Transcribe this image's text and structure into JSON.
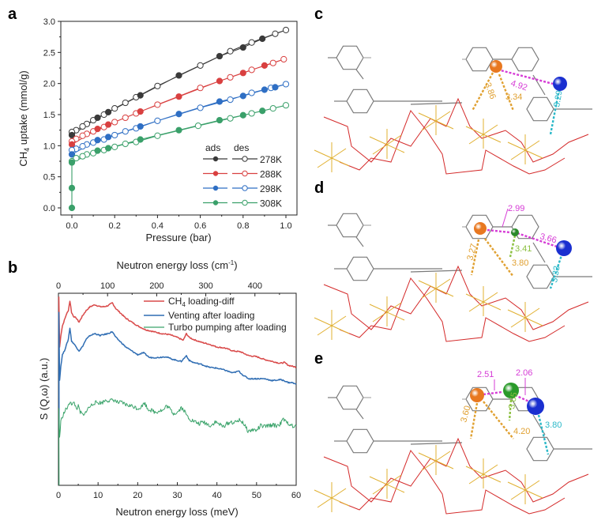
{
  "panels": {
    "a": "a",
    "b": "b",
    "c": "c",
    "d": "d",
    "e": "e"
  },
  "chart_data": [
    {
      "type": "scatter",
      "panel": "a",
      "xlabel": "Pressure (bar)",
      "ylabel_main": "CH",
      "ylabel_sub": "4",
      "ylabel_rest": " uptake (mmol/g)",
      "xlim": [
        0,
        1.0
      ],
      "ylim": [
        0,
        3.0
      ],
      "xticks": [
        "0.0",
        "0.2",
        "0.4",
        "0.6",
        "0.8",
        "1.0"
      ],
      "xtick_values": [
        0,
        0.2,
        0.4,
        0.6,
        0.8,
        1.0
      ],
      "yticks": [
        "0.0",
        "0.5",
        "1.0",
        "1.5",
        "2.0",
        "2.5",
        "3.0"
      ],
      "ytick_values": [
        0,
        0.5,
        1.0,
        1.5,
        2.0,
        2.5,
        3.0
      ],
      "legend_header": [
        "ads",
        "des"
      ],
      "legend_position": "bottom-right",
      "series": [
        {
          "name": "278K",
          "color": "#3a3a3a",
          "ads": [
            [
              0,
              1.17
            ],
            [
              0.12,
              1.45
            ],
            [
              0.17,
              1.54
            ],
            [
              0.32,
              1.81
            ],
            [
              0.5,
              2.13
            ],
            [
              0.69,
              2.44
            ],
            [
              0.8,
              2.58
            ],
            [
              0.89,
              2.72
            ]
          ],
          "des": [
            [
              1.0,
              2.86
            ],
            [
              0.95,
              2.8
            ],
            [
              0.84,
              2.66
            ],
            [
              0.74,
              2.52
            ],
            [
              0.6,
              2.29
            ],
            [
              0.4,
              1.96
            ],
            [
              0.3,
              1.78
            ],
            [
              0.25,
              1.69
            ],
            [
              0.2,
              1.6
            ],
            [
              0.15,
              1.5
            ],
            [
              0.1,
              1.41
            ],
            [
              0.07,
              1.35
            ],
            [
              0.05,
              1.31
            ],
            [
              0.02,
              1.25
            ],
            [
              0,
              1.22
            ]
          ]
        },
        {
          "name": "288K",
          "color": "#d94040",
          "ads": [
            [
              0,
              1.02
            ],
            [
              0.12,
              1.27
            ],
            [
              0.17,
              1.34
            ],
            [
              0.32,
              1.55
            ],
            [
              0.5,
              1.79
            ],
            [
              0.69,
              2.04
            ],
            [
              0.8,
              2.17
            ],
            [
              0.9,
              2.29
            ]
          ],
          "des": [
            [
              0.99,
              2.39
            ],
            [
              0.94,
              2.33
            ],
            [
              0.84,
              2.22
            ],
            [
              0.74,
              2.1
            ],
            [
              0.6,
              1.93
            ],
            [
              0.4,
              1.66
            ],
            [
              0.3,
              1.52
            ],
            [
              0.25,
              1.45
            ],
            [
              0.2,
              1.38
            ],
            [
              0.15,
              1.3
            ],
            [
              0.1,
              1.23
            ],
            [
              0.07,
              1.19
            ],
            [
              0.05,
              1.16
            ],
            [
              0.02,
              1.11
            ],
            [
              0,
              1.07
            ]
          ]
        },
        {
          "name": "298K",
          "color": "#2f6fc4",
          "ads": [
            [
              0,
              0.86
            ],
            [
              0.12,
              1.09
            ],
            [
              0.17,
              1.14
            ],
            [
              0.32,
              1.31
            ],
            [
              0.5,
              1.51
            ],
            [
              0.69,
              1.71
            ],
            [
              0.8,
              1.8
            ],
            [
              0.9,
              1.9
            ],
            [
              0.95,
              1.94
            ]
          ],
          "des": [
            [
              1.0,
              1.99
            ],
            [
              0.93,
              1.93
            ],
            [
              0.84,
              1.85
            ],
            [
              0.74,
              1.74
            ],
            [
              0.6,
              1.61
            ],
            [
              0.4,
              1.4
            ],
            [
              0.3,
              1.28
            ],
            [
              0.25,
              1.23
            ],
            [
              0.2,
              1.17
            ],
            [
              0.15,
              1.1
            ],
            [
              0.1,
              1.05
            ],
            [
              0.07,
              1.02
            ],
            [
              0.05,
              0.99
            ],
            [
              0.02,
              0.95
            ],
            [
              0,
              0.93
            ]
          ]
        },
        {
          "name": "308K",
          "color": "#3aa06a",
          "ads": [
            [
              0,
              0.0
            ],
            [
              0,
              0.32
            ],
            [
              0,
              0.73
            ],
            [
              0.12,
              0.92
            ],
            [
              0.17,
              0.96
            ],
            [
              0.32,
              1.1
            ],
            [
              0.5,
              1.25
            ],
            [
              0.69,
              1.41
            ],
            [
              0.8,
              1.49
            ],
            [
              0.89,
              1.56
            ]
          ],
          "des": [
            [
              1.0,
              1.65
            ],
            [
              0.94,
              1.6
            ],
            [
              0.84,
              1.52
            ],
            [
              0.74,
              1.44
            ],
            [
              0.59,
              1.32
            ],
            [
              0.4,
              1.16
            ],
            [
              0.3,
              1.06
            ],
            [
              0.25,
              1.03
            ],
            [
              0.2,
              0.98
            ],
            [
              0.15,
              0.93
            ],
            [
              0.1,
              0.88
            ],
            [
              0.07,
              0.86
            ],
            [
              0.05,
              0.83
            ],
            [
              0.02,
              0.8
            ],
            [
              0,
              0.75
            ]
          ]
        }
      ]
    },
    {
      "type": "line",
      "panel": "b",
      "xlabel": "Neutron energy loss (meV)",
      "x2label_main": "Neutron energy loss (cm",
      "x2label_sup": "-1",
      "x2label_end": ")",
      "ylabel": "S (Q,ω) (a.u.)",
      "xlim": [
        0,
        60
      ],
      "x2lim": [
        0,
        484
      ],
      "xticks": [
        "0",
        "10",
        "20",
        "30",
        "40",
        "50",
        "60"
      ],
      "xtick_values": [
        0,
        10,
        20,
        30,
        40,
        50,
        60
      ],
      "x2ticks": [
        "0",
        "100",
        "200",
        "300",
        "400"
      ],
      "x2tick_values": [
        0,
        100,
        200,
        300,
        400
      ],
      "ylim": [
        0,
        1
      ],
      "legend_position": "top-right",
      "series": [
        {
          "name_main": "CH",
          "name_sub": "4",
          "name_rest": " loading-diff",
          "color": "#d94a4a",
          "x": [
            0.3,
            0.6,
            1.0,
            1.5,
            2.0,
            2.5,
            2.9,
            3.3,
            3.8,
            4.5,
            5.2,
            6.0,
            7.0,
            8.0,
            9.2,
            10.5,
            11.5,
            12.5,
            13.6,
            14.5,
            15.5,
            17.0,
            18.5,
            20.0,
            22.0,
            24.0,
            26.0,
            28.0,
            30.0,
            31.5,
            32.3,
            33.0,
            34.0,
            36.0,
            38.0,
            40.0,
            42.0,
            44.0,
            46.0,
            48.0,
            50.0,
            52.0,
            54.0,
            56.0,
            57.0,
            58.0,
            59.0,
            60.0
          ],
          "y": [
            0.72,
            0.78,
            0.83,
            0.86,
            0.89,
            0.91,
            0.96,
            0.9,
            0.88,
            0.87,
            0.85,
            0.88,
            0.91,
            0.93,
            0.94,
            0.93,
            0.93,
            0.935,
            0.95,
            0.92,
            0.9,
            0.87,
            0.85,
            0.83,
            0.81,
            0.8,
            0.79,
            0.785,
            0.77,
            0.755,
            0.79,
            0.77,
            0.76,
            0.745,
            0.735,
            0.72,
            0.715,
            0.7,
            0.695,
            0.675,
            0.67,
            0.655,
            0.645,
            0.635,
            0.64,
            0.625,
            0.62,
            0.615
          ]
        },
        {
          "name": "Venting after loading",
          "color": "#2f6db3",
          "x": [
            0.3,
            0.6,
            1.0,
            1.5,
            2.0,
            2.5,
            2.9,
            3.3,
            3.8,
            4.5,
            5.2,
            6.0,
            7.0,
            8.0,
            9.2,
            10.5,
            11.5,
            12.5,
            13.6,
            14.5,
            15.5,
            17.0,
            18.5,
            20.0,
            21.5,
            23.0,
            25.0,
            27.0,
            29.0,
            31.0,
            32.3,
            33.0,
            34.0,
            36.0,
            38.0,
            40.0,
            42.0,
            44.0,
            45.5,
            46.5,
            48.0,
            50.0,
            52.0,
            54.0,
            56.0,
            57.0,
            58.0,
            59.0,
            60.0
          ],
          "y": [
            0.55,
            0.62,
            0.68,
            0.7,
            0.73,
            0.76,
            0.82,
            0.75,
            0.74,
            0.72,
            0.7,
            0.72,
            0.76,
            0.78,
            0.79,
            0.78,
            0.785,
            0.79,
            0.8,
            0.77,
            0.75,
            0.72,
            0.7,
            0.68,
            0.69,
            0.665,
            0.665,
            0.67,
            0.655,
            0.645,
            0.675,
            0.65,
            0.64,
            0.63,
            0.615,
            0.61,
            0.6,
            0.585,
            0.595,
            0.575,
            0.555,
            0.555,
            0.555,
            0.545,
            0.55,
            0.545,
            0.535,
            0.535,
            0.525
          ]
        },
        {
          "name": "Turbo pumping after loading",
          "color": "#3aa36a",
          "x": [
            0.3,
            0.6,
            1.0,
            1.5,
            2.0,
            2.5,
            3.0,
            3.5,
            4.0,
            4.5,
            5.0,
            5.5,
            6.0,
            6.5,
            7.0,
            8.0,
            9.0,
            10.0,
            11.0,
            12.0,
            13.0,
            14.0,
            15.0,
            16.0,
            17.0,
            18.0,
            19.0,
            20.0,
            21.0,
            21.7,
            22.5,
            23.5,
            24.5,
            25.5,
            26.5,
            27.3,
            28.0,
            29.0,
            30.0,
            31.0,
            31.7,
            32.5,
            33.5,
            34.5,
            35.5,
            36.5,
            37.5,
            38.5,
            39.5,
            40.5,
            41.5,
            42.5,
            43.5,
            44.5,
            45.5,
            46.5,
            47.3,
            48.0,
            49.0,
            50.0,
            51.0,
            52.0,
            53.0,
            54.0,
            55.0,
            56.0,
            56.8,
            57.5,
            58.5,
            59.3,
            60.0
          ],
          "y": [
            0.25,
            0.33,
            0.36,
            0.38,
            0.4,
            0.41,
            0.44,
            0.42,
            0.43,
            0.4,
            0.41,
            0.38,
            0.37,
            0.36,
            0.39,
            0.41,
            0.43,
            0.43,
            0.43,
            0.445,
            0.44,
            0.445,
            0.43,
            0.43,
            0.42,
            0.415,
            0.41,
            0.4,
            0.41,
            0.43,
            0.4,
            0.39,
            0.38,
            0.39,
            0.39,
            0.415,
            0.4,
            0.375,
            0.38,
            0.405,
            0.39,
            0.36,
            0.34,
            0.33,
            0.32,
            0.33,
            0.32,
            0.31,
            0.33,
            0.32,
            0.305,
            0.32,
            0.33,
            0.325,
            0.34,
            0.33,
            0.3,
            0.28,
            0.29,
            0.285,
            0.31,
            0.305,
            0.31,
            0.315,
            0.31,
            0.32,
            0.345,
            0.325,
            0.32,
            0.3,
            0.31
          ]
        }
      ]
    }
  ],
  "structures": [
    {
      "panel": "c",
      "distances": [
        {
          "label": "4.92",
          "color": "#d63cd6"
        },
        {
          "label": "3.86",
          "color": "#e0a030"
        },
        {
          "label": "3.34",
          "color": "#e0a030"
        },
        {
          "label": "3.29",
          "color": "#2ab8c8"
        }
      ],
      "atom_colors": {
        "orange": "#e87820",
        "blue": "#1a2fd0"
      }
    },
    {
      "panel": "d",
      "distances": [
        {
          "label": "2.99",
          "color": "#d63cd6"
        },
        {
          "label": "3.66",
          "color": "#d63cd6"
        },
        {
          "label": "3.41",
          "color": "#8cc040"
        },
        {
          "label": "3.27",
          "color": "#e0a030"
        },
        {
          "label": "3.80",
          "color": "#e0a030"
        },
        {
          "label": "3.33",
          "color": "#2ab8c8"
        }
      ],
      "atom_colors": {
        "orange": "#e87820",
        "green": "#2a8a2a",
        "blue": "#1a2fd0"
      }
    },
    {
      "panel": "e",
      "distances": [
        {
          "label": "2.51",
          "color": "#d63cd6"
        },
        {
          "label": "2.06",
          "color": "#d63cd6"
        },
        {
          "label": "3.65",
          "color": "#8cc040"
        },
        {
          "label": "3.60",
          "color": "#e0a030"
        },
        {
          "label": "4.20",
          "color": "#e0a030"
        },
        {
          "label": "3.80",
          "color": "#2ab8c8"
        }
      ],
      "atom_colors": {
        "orange": "#e87820",
        "green": "#2a9a2a",
        "blue": "#1a2fd0"
      }
    }
  ]
}
